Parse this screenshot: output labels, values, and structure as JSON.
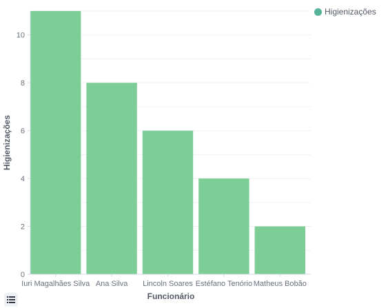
{
  "chart_data": {
    "type": "bar",
    "categories": [
      "Iuri Magalhães Silva",
      "Ana Silva",
      "Lincoln Soares",
      "Estéfano Tenório",
      "Matheus Bobão"
    ],
    "series": [
      {
        "name": "Higienizações",
        "values": [
          11,
          8,
          6,
          4,
          2
        ]
      }
    ],
    "xlabel": "Funcionário",
    "ylabel": "Higienizações",
    "ylim": [
      0,
      11
    ],
    "yticks": [
      0,
      2,
      4,
      6,
      8,
      10
    ],
    "grid": true,
    "legend_position": "top-right",
    "colors": {
      "bar": "#7ccd96",
      "legend_dot": "#54b399"
    }
  },
  "legend": {
    "label": "Higienizações"
  },
  "legend_toggle_icon": "list-icon"
}
